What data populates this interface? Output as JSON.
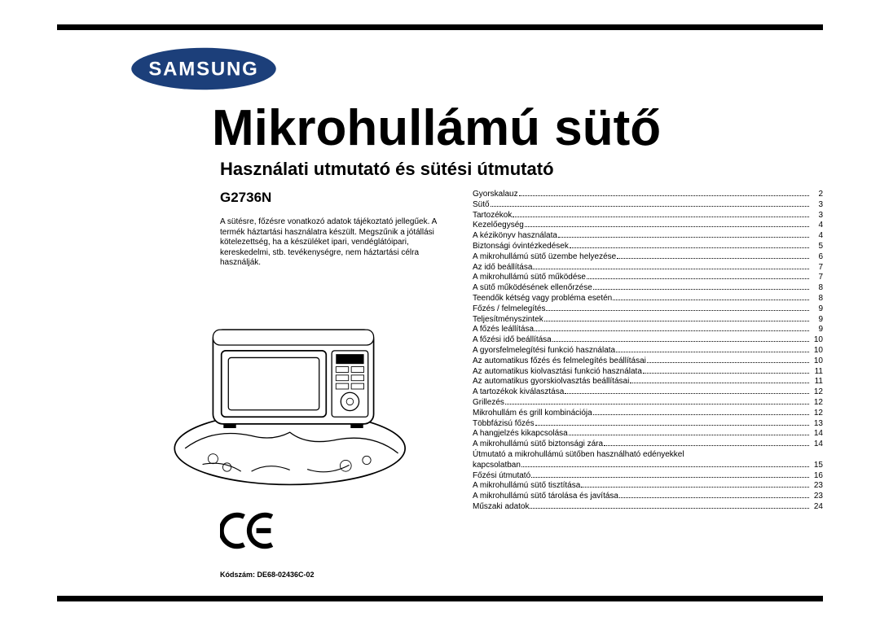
{
  "brand": "SAMSUNG",
  "title": "Mikrohullámú sütő",
  "subtitle": "Használati utmutató és sütési útmutató",
  "model": "G2736N",
  "disclaimer": "A sütésre, főzésre vonatkozó adatok tájékoztató jellegűek. A termék háztartási használatra készült. Megszűnik a jótállási kötelezettség, ha a készüléket ipari, vendéglátóipari, kereskedelmi, stb. tevékenységre, nem háztartási célra használják.",
  "code": "Kódszám: DE68-02436C-02",
  "ce_mark": "CE",
  "toc": [
    {
      "label": "Gyorskalauz",
      "page": "2"
    },
    {
      "label": "Sütő",
      "page": "3"
    },
    {
      "label": "Tartozékok",
      "page": "3"
    },
    {
      "label": "Kezelőegység",
      "page": "4"
    },
    {
      "label": "A kézikönyv használata",
      "page": "4"
    },
    {
      "label": "Biztonsági óvintézkedések",
      "page": "5"
    },
    {
      "label": "A mikrohullámú sütő üzembe helyezése",
      "page": "6"
    },
    {
      "label": "Az idő beállítása",
      "page": "7"
    },
    {
      "label": "A mikrohullámú sütő működése",
      "page": "7"
    },
    {
      "label": "A sütő működésének ellenőrzése",
      "page": "8"
    },
    {
      "label": "Teendők kétség vagy probléma esetén",
      "page": "8"
    },
    {
      "label": "Főzés / felmelegítés",
      "page": "9"
    },
    {
      "label": "Teljesítményszintek",
      "page": "9"
    },
    {
      "label": "A főzés leállítása",
      "page": "9"
    },
    {
      "label": "A főzési idő beállítása",
      "page": "10"
    },
    {
      "label": "A gyorsfelmelegítési funkció használata",
      "page": "10"
    },
    {
      "label": "Az automatikus főzés és felmelegítés beállításai",
      "page": "10"
    },
    {
      "label": "Az automatikus kiolvasztási funkció használata",
      "page": "11"
    },
    {
      "label": "Az automatikus gyorskiolvasztás beállításai",
      "page": "11"
    },
    {
      "label": "A tartozékok kiválasztása",
      "page": "12"
    },
    {
      "label": "Grillezés",
      "page": "12"
    },
    {
      "label": "Mikrohullám és grill kombinációja",
      "page": "12"
    },
    {
      "label": "Többfázisú főzés",
      "page": "13"
    },
    {
      "label": "A hangjelzés kikapcsolása",
      "page": "14"
    },
    {
      "label": "A mikrohullámú sütő biztonsági zára",
      "page": "14"
    },
    {
      "label": "Útmutató a mikrohullámú sütőben használható edényekkel kapcsolatban",
      "page": "15"
    },
    {
      "label": "Főzési útmutató",
      "page": "16"
    },
    {
      "label": "A mikrohullámú sütő tisztítása",
      "page": "23"
    },
    {
      "label": "A mikrohullámú sütő tárolása és javítása",
      "page": "23"
    },
    {
      "label": "Műszaki adatok",
      "page": "24"
    }
  ],
  "colors": {
    "bar": "#000000",
    "logo_fill": "#1c3f7a",
    "text": "#000000",
    "bg": "#ffffff"
  }
}
